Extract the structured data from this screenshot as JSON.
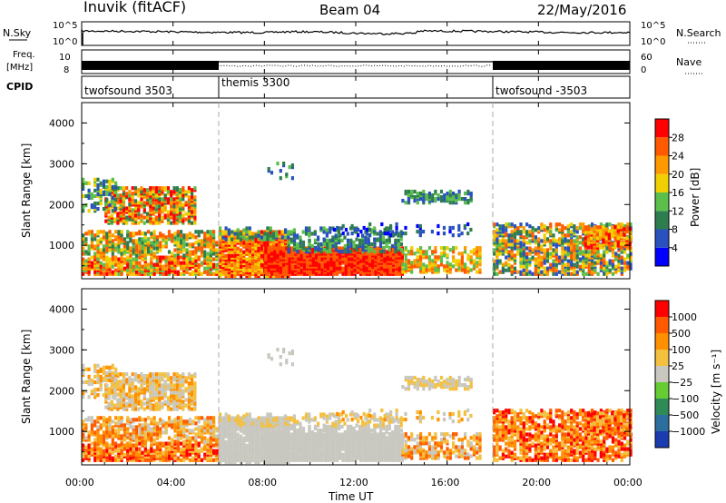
{
  "header": {
    "station": "Inuvik (fitACF)",
    "beam": "Beam 04",
    "date": "22/May/2016"
  },
  "chart_data": [
    {
      "type": "line",
      "panel": "noise",
      "left_label": "N.Sky",
      "right_label": "N.Search",
      "yticks_left": [
        "10^5",
        "10^0"
      ],
      "yticks_right": [
        "10^5",
        "10^0"
      ]
    },
    {
      "type": "line",
      "panel": "frequency",
      "left_label_top": "Freq.",
      "left_label_bottom": "[MHz]",
      "right_label": "Nave",
      "yticks_left": [
        "10",
        "8"
      ],
      "yticks_right": [
        "60",
        "0"
      ]
    },
    {
      "type": "table",
      "panel": "cpid",
      "label": "CPID",
      "segments": [
        {
          "name": "twofsound 3503",
          "start": "00:00",
          "end": "06:00"
        },
        {
          "name": "themis 3300",
          "start": "06:00",
          "end": "18:00"
        },
        {
          "name": "twofsound -3503",
          "start": "18:00",
          "end": "24:00"
        }
      ]
    },
    {
      "type": "heatmap",
      "panel": "power",
      "ylabel": "Slant Range [km]",
      "yticks": [
        1000,
        2000,
        3000,
        4000
      ],
      "ylim": [
        180,
        4500
      ],
      "colorbar_label": "Power [dB]",
      "colorbar_ticks": [
        4,
        8,
        12,
        16,
        20,
        24,
        28
      ],
      "colorbar_colors": [
        "#0000ff",
        "#2a52be",
        "#2e7d4f",
        "#5bbf4a",
        "#f0d000",
        "#ff9900",
        "#ff5a00",
        "#ff0000"
      ]
    },
    {
      "type": "heatmap",
      "panel": "velocity",
      "ylabel": "Slant Range [km]",
      "yticks": [
        1000,
        2000,
        3000,
        4000
      ],
      "ylim": [
        180,
        4500
      ],
      "colorbar_label": "Velocity [m s⁻¹]",
      "colorbar_ticks": [
        "1000",
        "500",
        "100",
        "25",
        "−25",
        "−100",
        "−500",
        "−1000"
      ],
      "colorbar_colors": [
        "#1a3cb0",
        "#2c6e9e",
        "#2e8b57",
        "#66cc33",
        "#c8c8c0",
        "#f4c040",
        "#ff9000",
        "#ff5a00",
        "#ff0000"
      ]
    }
  ],
  "x_axis": {
    "ticks": [
      "00:00",
      "04:00",
      "08:00",
      "12:00",
      "16:00",
      "20:00",
      "00:00"
    ],
    "label": "Time UT"
  }
}
